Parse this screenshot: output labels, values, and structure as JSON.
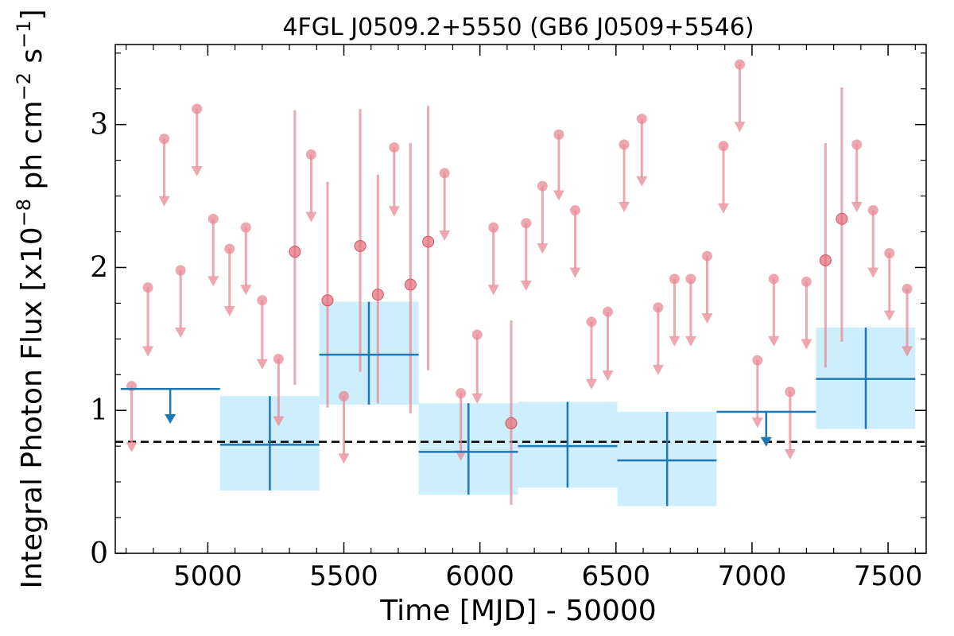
{
  "chart_data": {
    "type": "scatter",
    "title": "4FGL J0509.2+5550 (GB6 J0509+5546)",
    "xlabel": "Time [MJD] - 50000",
    "ylabel": "Integral Photon Flux [x10",
    "ylabel_sup1": "−8",
    "ylabel_mid": " ph cm",
    "ylabel_sup2": "−2",
    "ylabel_mid2": " s",
    "ylabel_sup3": "−1",
    "ylabel_end": "]",
    "xlim": [
      4660,
      7640
    ],
    "ylim": [
      0,
      3.56
    ],
    "xticks": [
      5000,
      5500,
      6000,
      6500,
      7000,
      7500
    ],
    "xtick_labels": [
      "5000",
      "5500",
      "6000",
      "6500",
      "7000",
      "7500"
    ],
    "yticks": [
      0,
      1,
      2,
      3
    ],
    "ytick_labels": [
      "0",
      "1",
      "2",
      "3"
    ],
    "grid": false,
    "reference_line": 0.78,
    "colors": {
      "short_bins": "#e88a94",
      "long_bins": "#1f77b4",
      "band_fill": "#cdeefc",
      "reference": "#000000"
    },
    "short_bin_detections": [
      {
        "x": 5320,
        "y": 2.11,
        "lo": 1.18,
        "hi": 3.1
      },
      {
        "x": 5440,
        "y": 1.77,
        "lo": 1.02,
        "hi": 2.6
      },
      {
        "x": 5560,
        "y": 2.15,
        "lo": 1.27,
        "hi": 3.11
      },
      {
        "x": 5625,
        "y": 1.81,
        "lo": 1.05,
        "hi": 2.65
      },
      {
        "x": 5745,
        "y": 1.88,
        "lo": 0.98,
        "hi": 2.87
      },
      {
        "x": 5810,
        "y": 2.18,
        "lo": 1.28,
        "hi": 3.13
      },
      {
        "x": 6115,
        "y": 0.91,
        "lo": 0.34,
        "hi": 1.63
      },
      {
        "x": 7270,
        "y": 2.05,
        "lo": 1.3,
        "hi": 2.87
      },
      {
        "x": 7330,
        "y": 2.34,
        "lo": 1.48,
        "hi": 3.26
      }
    ],
    "short_bin_upper_limits": [
      {
        "x": 4720,
        "y": 1.17,
        "arrow": 0.74
      },
      {
        "x": 4780,
        "y": 1.86,
        "arrow": 1.41
      },
      {
        "x": 4840,
        "y": 2.9,
        "arrow": 2.46
      },
      {
        "x": 4900,
        "y": 1.98,
        "arrow": 1.54
      },
      {
        "x": 4960,
        "y": 3.11,
        "arrow": 2.67
      },
      {
        "x": 5020,
        "y": 2.34,
        "arrow": 1.9
      },
      {
        "x": 5080,
        "y": 2.13,
        "arrow": 1.69
      },
      {
        "x": 5140,
        "y": 2.28,
        "arrow": 1.84
      },
      {
        "x": 5200,
        "y": 1.77,
        "arrow": 1.32
      },
      {
        "x": 5260,
        "y": 1.36,
        "arrow": 0.92
      },
      {
        "x": 5380,
        "y": 2.79,
        "arrow": 2.35
      },
      {
        "x": 5500,
        "y": 1.1,
        "arrow": 0.66
      },
      {
        "x": 5685,
        "y": 2.84,
        "arrow": 2.39
      },
      {
        "x": 5870,
        "y": 2.66,
        "arrow": 2.22
      },
      {
        "x": 5930,
        "y": 1.12,
        "arrow": 0.68
      },
      {
        "x": 5990,
        "y": 1.53,
        "arrow": 1.08
      },
      {
        "x": 6050,
        "y": 2.28,
        "arrow": 1.84
      },
      {
        "x": 6170,
        "y": 2.31,
        "arrow": 1.87
      },
      {
        "x": 6230,
        "y": 2.57,
        "arrow": 2.13
      },
      {
        "x": 6290,
        "y": 2.93,
        "arrow": 2.5
      },
      {
        "x": 6350,
        "y": 2.4,
        "arrow": 1.96
      },
      {
        "x": 6410,
        "y": 1.62,
        "arrow": 1.18
      },
      {
        "x": 6470,
        "y": 1.69,
        "arrow": 1.24
      },
      {
        "x": 6530,
        "y": 2.86,
        "arrow": 2.42
      },
      {
        "x": 6595,
        "y": 3.04,
        "arrow": 2.6
      },
      {
        "x": 6655,
        "y": 1.72,
        "arrow": 1.28
      },
      {
        "x": 6715,
        "y": 1.92,
        "arrow": 1.48
      },
      {
        "x": 6775,
        "y": 1.92,
        "arrow": 1.48
      },
      {
        "x": 6835,
        "y": 2.08,
        "arrow": 1.64
      },
      {
        "x": 6895,
        "y": 2.85,
        "arrow": 2.41
      },
      {
        "x": 6955,
        "y": 3.42,
        "arrow": 2.98
      },
      {
        "x": 7020,
        "y": 1.35,
        "arrow": 0.91
      },
      {
        "x": 7080,
        "y": 1.92,
        "arrow": 1.48
      },
      {
        "x": 7140,
        "y": 1.13,
        "arrow": 0.69
      },
      {
        "x": 7200,
        "y": 1.9,
        "arrow": 1.46
      },
      {
        "x": 7385,
        "y": 2.86,
        "arrow": 2.42
      },
      {
        "x": 7445,
        "y": 2.4,
        "arrow": 1.96
      },
      {
        "x": 7505,
        "y": 2.1,
        "arrow": 1.66
      },
      {
        "x": 7570,
        "y": 1.85,
        "arrow": 1.41
      }
    ],
    "long_bins": [
      {
        "x0": 4680,
        "x1": 5045,
        "y": 1.15,
        "upper_limit": true,
        "arrow_x": 4862,
        "arrow": 0.94
      },
      {
        "x0": 5045,
        "x1": 5410,
        "y": 0.76,
        "lo": 0.44,
        "hi": 1.1,
        "xc": 5228
      },
      {
        "x0": 5410,
        "x1": 5775,
        "y": 1.39,
        "lo": 1.04,
        "hi": 1.76,
        "xc": 5592
      },
      {
        "x0": 5775,
        "x1": 6140,
        "y": 0.71,
        "lo": 0.41,
        "hi": 1.05,
        "xc": 5958
      },
      {
        "x0": 6140,
        "x1": 6505,
        "y": 0.75,
        "lo": 0.46,
        "hi": 1.06,
        "xc": 6322
      },
      {
        "x0": 6505,
        "x1": 6870,
        "y": 0.65,
        "lo": 0.33,
        "hi": 0.99,
        "xc": 6688
      },
      {
        "x0": 6870,
        "x1": 7235,
        "y": 0.99,
        "upper_limit": true,
        "arrow_x": 7052,
        "arrow": 0.78
      },
      {
        "x0": 7235,
        "x1": 7600,
        "y": 1.22,
        "lo": 0.87,
        "hi": 1.58,
        "xc": 7418
      }
    ]
  }
}
